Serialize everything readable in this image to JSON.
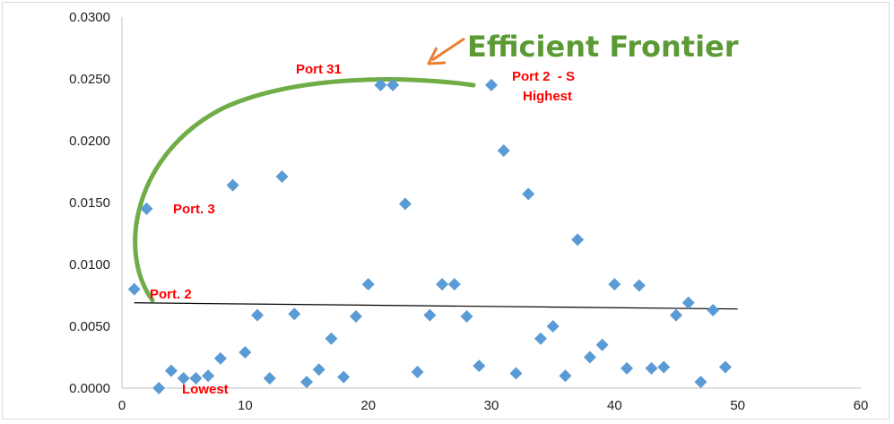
{
  "chart_data": {
    "type": "scatter",
    "title": "Efficient Frontier",
    "xlim": [
      0,
      60
    ],
    "ylim": [
      0,
      0.03
    ],
    "x_ticks": [
      "0",
      "10",
      "20",
      "30",
      "40",
      "50",
      "60"
    ],
    "y_ticks": [
      "0.0000",
      "0.0050",
      "0.0100",
      "0.0150",
      "0.0200",
      "0.0250",
      "0.0300"
    ],
    "grid": false,
    "legend": "none",
    "series": [
      {
        "color": "#5b9bd5",
        "marker": "diamond",
        "points": [
          [
            1,
            0.008
          ],
          [
            2,
            0.0145
          ],
          [
            3,
            0.0
          ],
          [
            4,
            0.0014
          ],
          [
            5,
            0.0008
          ],
          [
            6,
            0.0008
          ],
          [
            7,
            0.001
          ],
          [
            8,
            0.0024
          ],
          [
            9,
            0.0164
          ],
          [
            10,
            0.0029
          ],
          [
            11,
            0.0059
          ],
          [
            12,
            0.0008
          ],
          [
            13,
            0.0171
          ],
          [
            14,
            0.006
          ],
          [
            15,
            0.0005
          ],
          [
            16,
            0.0015
          ],
          [
            17,
            0.004
          ],
          [
            18,
            0.0009
          ],
          [
            19,
            0.0058
          ],
          [
            20,
            0.0084
          ],
          [
            21,
            0.0245
          ],
          [
            22,
            0.0245
          ],
          [
            23,
            0.0149
          ],
          [
            24,
            0.0013
          ],
          [
            25,
            0.0059
          ],
          [
            26,
            0.0084
          ],
          [
            27,
            0.0084
          ],
          [
            28,
            0.0058
          ],
          [
            29,
            0.0018
          ],
          [
            30,
            0.0245
          ],
          [
            31,
            0.0192
          ],
          [
            32,
            0.0012
          ],
          [
            33,
            0.0157
          ],
          [
            34,
            0.004
          ],
          [
            35,
            0.005
          ],
          [
            36,
            0.001
          ],
          [
            37,
            0.012
          ],
          [
            38,
            0.0025
          ],
          [
            39,
            0.0035
          ],
          [
            40,
            0.0084
          ],
          [
            41,
            0.0016
          ],
          [
            42,
            0.0083
          ],
          [
            43,
            0.0016
          ],
          [
            44,
            0.0017
          ],
          [
            45,
            0.0059
          ],
          [
            46,
            0.0069
          ],
          [
            47,
            0.0005
          ],
          [
            48,
            0.0063
          ],
          [
            49,
            0.0017
          ]
        ]
      }
    ],
    "trendline": {
      "color": "#000000",
      "points": [
        [
          1,
          0.0069
        ],
        [
          50,
          0.0064
        ]
      ]
    },
    "frontier_curve": {
      "color": "#70ad47"
    },
    "arrow_color": "#ed7d31",
    "annotations": [
      {
        "text": "Port 31",
        "x": 21,
        "y": 0.0245
      },
      {
        "text": "Port 2  - S",
        "x": 30,
        "y": 0.0245
      },
      {
        "text": "Highest",
        "x": 30,
        "y": 0.0245
      },
      {
        "text": "Port. 3",
        "x": 2,
        "y": 0.0145
      },
      {
        "text": "Port. 2",
        "x": 1,
        "y": 0.008
      },
      {
        "text": "Lowest",
        "x": 3,
        "y": 0.0
      }
    ]
  }
}
